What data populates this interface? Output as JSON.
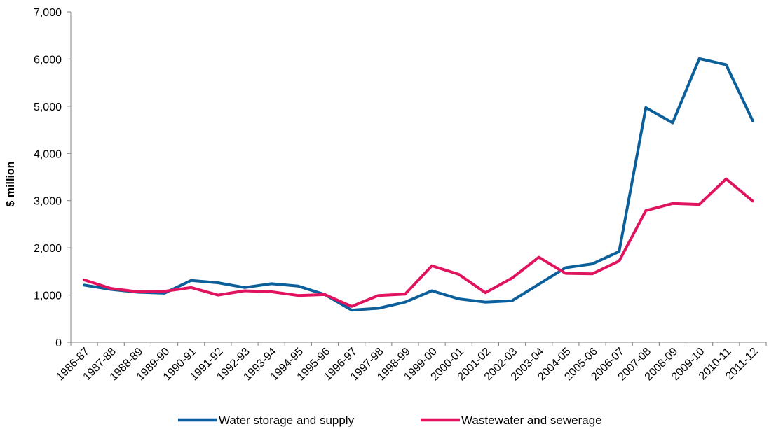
{
  "chart_data": {
    "type": "line",
    "title": "",
    "xlabel": "",
    "ylabel": "$ million",
    "ylim": [
      0,
      7000
    ],
    "yticks": [
      0,
      1000,
      2000,
      3000,
      4000,
      5000,
      6000,
      7000
    ],
    "ytick_labels": [
      "0",
      "1,000",
      "2,000",
      "3,000",
      "4,000",
      "5,000",
      "6,000",
      "7,000"
    ],
    "grid": false,
    "legend_position": "bottom",
    "categories": [
      "1986-87",
      "1987-88",
      "1988-89",
      "1989-90",
      "1990-91",
      "1991-92",
      "1992-93",
      "1993-94",
      "1994-95",
      "1995-96",
      "1996-97",
      "1997-98",
      "1998-99",
      "1999-00",
      "2000-01",
      "2001-02",
      "2002-03",
      "2003-04",
      "2004-05",
      "2005-06",
      "2006-07",
      "2007-08",
      "2008-09",
      "2009-10",
      "2010-11",
      "2011-12"
    ],
    "series": [
      {
        "name": "Water storage and supply",
        "color": "#0b5f9a",
        "values": [
          1210,
          1120,
          1060,
          1040,
          1310,
          1260,
          1160,
          1240,
          1190,
          1010,
          680,
          720,
          850,
          1090,
          920,
          850,
          880,
          1230,
          1580,
          1660,
          1920,
          4970,
          4650,
          6010,
          5880,
          4690
        ]
      },
      {
        "name": "Wastewater and sewerage",
        "color": "#e0135f",
        "values": [
          1320,
          1140,
          1070,
          1080,
          1160,
          1000,
          1090,
          1070,
          990,
          1010,
          760,
          990,
          1020,
          1620,
          1440,
          1050,
          1360,
          1800,
          1460,
          1450,
          1720,
          2790,
          2940,
          2920,
          3460,
          2990
        ]
      }
    ]
  }
}
